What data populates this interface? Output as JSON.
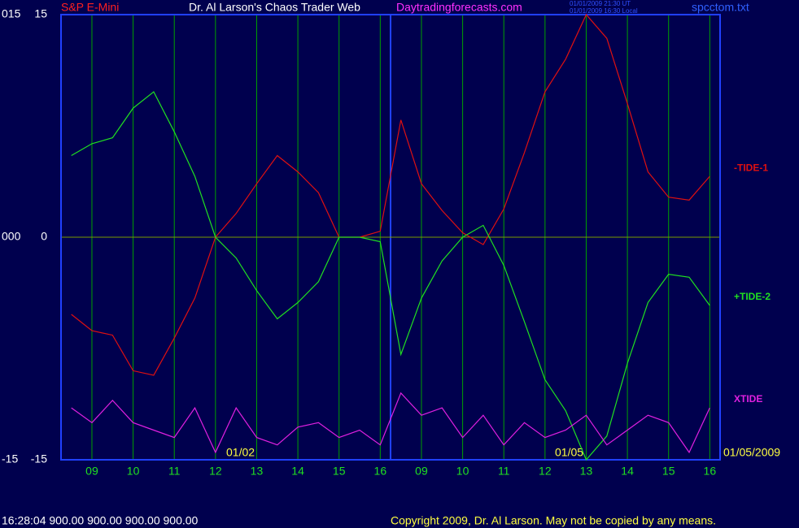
{
  "chart_data": {
    "type": "line",
    "title": "S&P E-Mini",
    "subtitle": "Dr. Al Larson's Chaos Trader Web",
    "site": "Daytradingforecasts.com",
    "time_stamps": [
      "01/01/2009 21:30 UT",
      "01/01/2009 16:30 Local"
    ],
    "file_name": "spcctom.txt",
    "date_labels": [
      "01/02",
      "01/05",
      "01/05/2009"
    ],
    "status_line": "16:28:04  900.00 900.00 900.00 900.00",
    "copyright": "Copyright 2009, Dr. Al Larson. May not be copied by any means.",
    "categories": [
      null,
      "09",
      null,
      "10",
      null,
      "11",
      null,
      "12",
      null,
      "13",
      null,
      "14",
      null,
      "15",
      null,
      "16",
      null,
      "09",
      null,
      "10",
      null,
      "11",
      null,
      "12",
      null,
      "13",
      null,
      "14",
      null,
      "15",
      null,
      "16"
    ],
    "ylim": [
      -15,
      15
    ],
    "yticks": [
      -15,
      0,
      15
    ],
    "y2lim": [
      -15,
      15
    ],
    "y2ticks": [
      {
        "value": -15,
        "label": "-15"
      },
      {
        "value": 0,
        "label": "000"
      },
      {
        "value": 15,
        "label": "015"
      }
    ],
    "grid": true,
    "grid_color": "#00a000",
    "zero_line_color": "#7a9a00",
    "series": [
      {
        "name": "-TIDE-1",
        "color": "#e01010",
        "values": [
          -5.2,
          -6.3,
          -6.6,
          -9.0,
          -9.3,
          -6.8,
          -4.1,
          0,
          1.6,
          3.6,
          5.5,
          4.4,
          3.0,
          0,
          0,
          0.4,
          7.9,
          3.6,
          1.8,
          0.3,
          -0.5,
          1.9,
          5.7,
          9.8,
          12.0,
          15.0,
          13.4,
          9.0,
          4.4,
          2.7,
          2.5,
          4.1
        ]
      },
      {
        "name": "+TIDE-2",
        "color": "#20e020",
        "values": [
          5.5,
          6.3,
          6.7,
          8.7,
          9.8,
          7.1,
          4.1,
          0,
          -1.4,
          -3.6,
          -5.5,
          -4.4,
          -3.0,
          0,
          0,
          -0.3,
          -7.9,
          -4.1,
          -1.6,
          0,
          0.8,
          -1.9,
          -5.7,
          -9.6,
          -11.7,
          -15,
          -13.4,
          -8.5,
          -4.4,
          -2.5,
          -2.7,
          -4.6
        ]
      },
      {
        "name": "XTIDE",
        "color": "#e020e0",
        "values": [
          -11.5,
          -12.5,
          -11,
          -12.5,
          -13,
          -13.5,
          -11.5,
          -14.5,
          -11.5,
          -13.5,
          -14,
          -12.8,
          -12.5,
          -13.5,
          -13,
          -14,
          -10.5,
          -12,
          -11.5,
          -13.5,
          -12,
          -14,
          -12.5,
          -13.5,
          -13,
          -12,
          -14,
          -13,
          -12,
          -12.5,
          -14.5,
          -11.5
        ]
      }
    ]
  }
}
